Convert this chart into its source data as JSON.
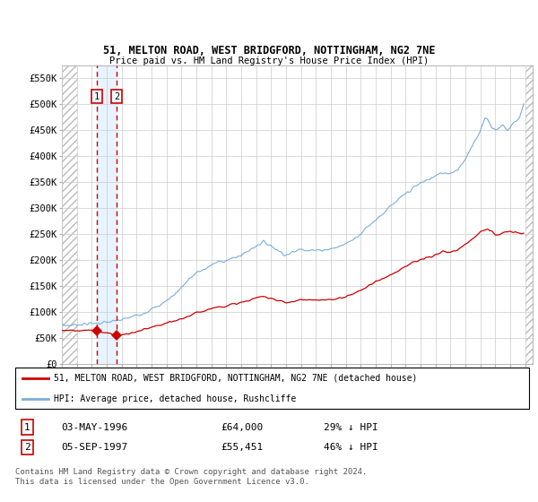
{
  "title1": "51, MELTON ROAD, WEST BRIDGFORD, NOTTINGHAM, NG2 7NE",
  "title2": "Price paid vs. HM Land Registry's House Price Index (HPI)",
  "ylim": [
    0,
    575000
  ],
  "xlim_start": 1994.0,
  "xlim_end": 2025.5,
  "yticks": [
    0,
    50000,
    100000,
    150000,
    200000,
    250000,
    300000,
    350000,
    400000,
    450000,
    500000,
    550000
  ],
  "ytick_labels": [
    "£0",
    "£50K",
    "£100K",
    "£150K",
    "£200K",
    "£250K",
    "£300K",
    "£350K",
    "£400K",
    "£450K",
    "£500K",
    "£550K"
  ],
  "hpi_color": "#7aacdc",
  "price_color": "#cc0000",
  "sale1_date": 1996.34,
  "sale1_price": 64000,
  "sale2_date": 1997.67,
  "sale2_price": 55451,
  "legend_property": "51, MELTON ROAD, WEST BRIDGFORD, NOTTINGHAM, NG2 7NE (detached house)",
  "legend_hpi": "HPI: Average price, detached house, Rushcliffe",
  "footer": "Contains HM Land Registry data © Crown copyright and database right 2024.\nThis data is licensed under the Open Government Licence v3.0.",
  "grid_color": "#cccccc",
  "shaded_region_color": "#ddeeff",
  "hatch_color": "#cccccc",
  "hpi_anchors": [
    [
      1994.0,
      75000
    ],
    [
      1994.5,
      74000
    ],
    [
      1995.0,
      76000
    ],
    [
      1995.5,
      77000
    ],
    [
      1996.0,
      78000
    ],
    [
      1996.5,
      79000
    ],
    [
      1997.0,
      80000
    ],
    [
      1997.5,
      82000
    ],
    [
      1998.0,
      85000
    ],
    [
      1998.5,
      89000
    ],
    [
      1999.0,
      94000
    ],
    [
      1999.5,
      99000
    ],
    [
      2000.0,
      105000
    ],
    [
      2000.5,
      112000
    ],
    [
      2001.0,
      122000
    ],
    [
      2001.5,
      133000
    ],
    [
      2002.0,
      148000
    ],
    [
      2002.5,
      163000
    ],
    [
      2003.0,
      175000
    ],
    [
      2003.5,
      182000
    ],
    [
      2004.0,
      190000
    ],
    [
      2004.5,
      197000
    ],
    [
      2005.0,
      200000
    ],
    [
      2005.5,
      203000
    ],
    [
      2006.0,
      210000
    ],
    [
      2006.5,
      218000
    ],
    [
      2007.0,
      228000
    ],
    [
      2007.5,
      235000
    ],
    [
      2008.0,
      228000
    ],
    [
      2008.5,
      218000
    ],
    [
      2009.0,
      210000
    ],
    [
      2009.5,
      215000
    ],
    [
      2010.0,
      222000
    ],
    [
      2010.5,
      220000
    ],
    [
      2011.0,
      218000
    ],
    [
      2011.5,
      220000
    ],
    [
      2012.0,
      222000
    ],
    [
      2012.5,
      225000
    ],
    [
      2013.0,
      232000
    ],
    [
      2013.5,
      240000
    ],
    [
      2014.0,
      252000
    ],
    [
      2014.5,
      265000
    ],
    [
      2015.0,
      278000
    ],
    [
      2015.5,
      290000
    ],
    [
      2016.0,
      303000
    ],
    [
      2016.5,
      315000
    ],
    [
      2017.0,
      328000
    ],
    [
      2017.5,
      338000
    ],
    [
      2018.0,
      348000
    ],
    [
      2018.5,
      355000
    ],
    [
      2019.0,
      362000
    ],
    [
      2019.5,
      368000
    ],
    [
      2020.0,
      368000
    ],
    [
      2020.5,
      375000
    ],
    [
      2021.0,
      395000
    ],
    [
      2021.5,
      420000
    ],
    [
      2022.0,
      450000
    ],
    [
      2022.3,
      475000
    ],
    [
      2022.5,
      470000
    ],
    [
      2022.8,
      455000
    ],
    [
      2023.0,
      450000
    ],
    [
      2023.3,
      455000
    ],
    [
      2023.5,
      460000
    ],
    [
      2023.8,
      450000
    ],
    [
      2024.0,
      455000
    ],
    [
      2024.3,
      468000
    ],
    [
      2024.6,
      472000
    ],
    [
      2024.9,
      500000
    ]
  ],
  "price_anchors": [
    [
      1994.0,
      65000
    ],
    [
      1995.0,
      64500
    ],
    [
      1996.0,
      64200
    ],
    [
      1996.34,
      64000
    ],
    [
      1997.0,
      60000
    ],
    [
      1997.67,
      55451
    ],
    [
      1998.0,
      56000
    ],
    [
      1998.5,
      58000
    ],
    [
      1999.0,
      62000
    ],
    [
      1999.5,
      66000
    ],
    [
      2000.0,
      70000
    ],
    [
      2000.5,
      74000
    ],
    [
      2001.0,
      78000
    ],
    [
      2001.5,
      82000
    ],
    [
      2002.0,
      87000
    ],
    [
      2002.5,
      92000
    ],
    [
      2003.0,
      98000
    ],
    [
      2003.5,
      103000
    ],
    [
      2004.0,
      107000
    ],
    [
      2004.5,
      110000
    ],
    [
      2005.0,
      112000
    ],
    [
      2005.5,
      115000
    ],
    [
      2006.0,
      118000
    ],
    [
      2006.5,
      122000
    ],
    [
      2007.0,
      127000
    ],
    [
      2007.5,
      130000
    ],
    [
      2008.0,
      127000
    ],
    [
      2008.5,
      122000
    ],
    [
      2009.0,
      118000
    ],
    [
      2009.5,
      120000
    ],
    [
      2010.0,
      124000
    ],
    [
      2010.5,
      123000
    ],
    [
      2011.0,
      122000
    ],
    [
      2011.5,
      123000
    ],
    [
      2012.0,
      124000
    ],
    [
      2012.5,
      126000
    ],
    [
      2013.0,
      130000
    ],
    [
      2013.5,
      135000
    ],
    [
      2014.0,
      142000
    ],
    [
      2014.5,
      150000
    ],
    [
      2015.0,
      158000
    ],
    [
      2015.5,
      165000
    ],
    [
      2016.0,
      172000
    ],
    [
      2016.5,
      180000
    ],
    [
      2017.0,
      188000
    ],
    [
      2017.5,
      195000
    ],
    [
      2018.0,
      200000
    ],
    [
      2018.5,
      205000
    ],
    [
      2019.0,
      210000
    ],
    [
      2019.5,
      215000
    ],
    [
      2020.0,
      215000
    ],
    [
      2020.5,
      220000
    ],
    [
      2021.0,
      230000
    ],
    [
      2021.5,
      242000
    ],
    [
      2022.0,
      255000
    ],
    [
      2022.5,
      260000
    ],
    [
      2022.8,
      255000
    ],
    [
      2023.0,
      248000
    ],
    [
      2023.5,
      252000
    ],
    [
      2024.0,
      255000
    ],
    [
      2024.5,
      252000
    ],
    [
      2024.9,
      252000
    ]
  ]
}
